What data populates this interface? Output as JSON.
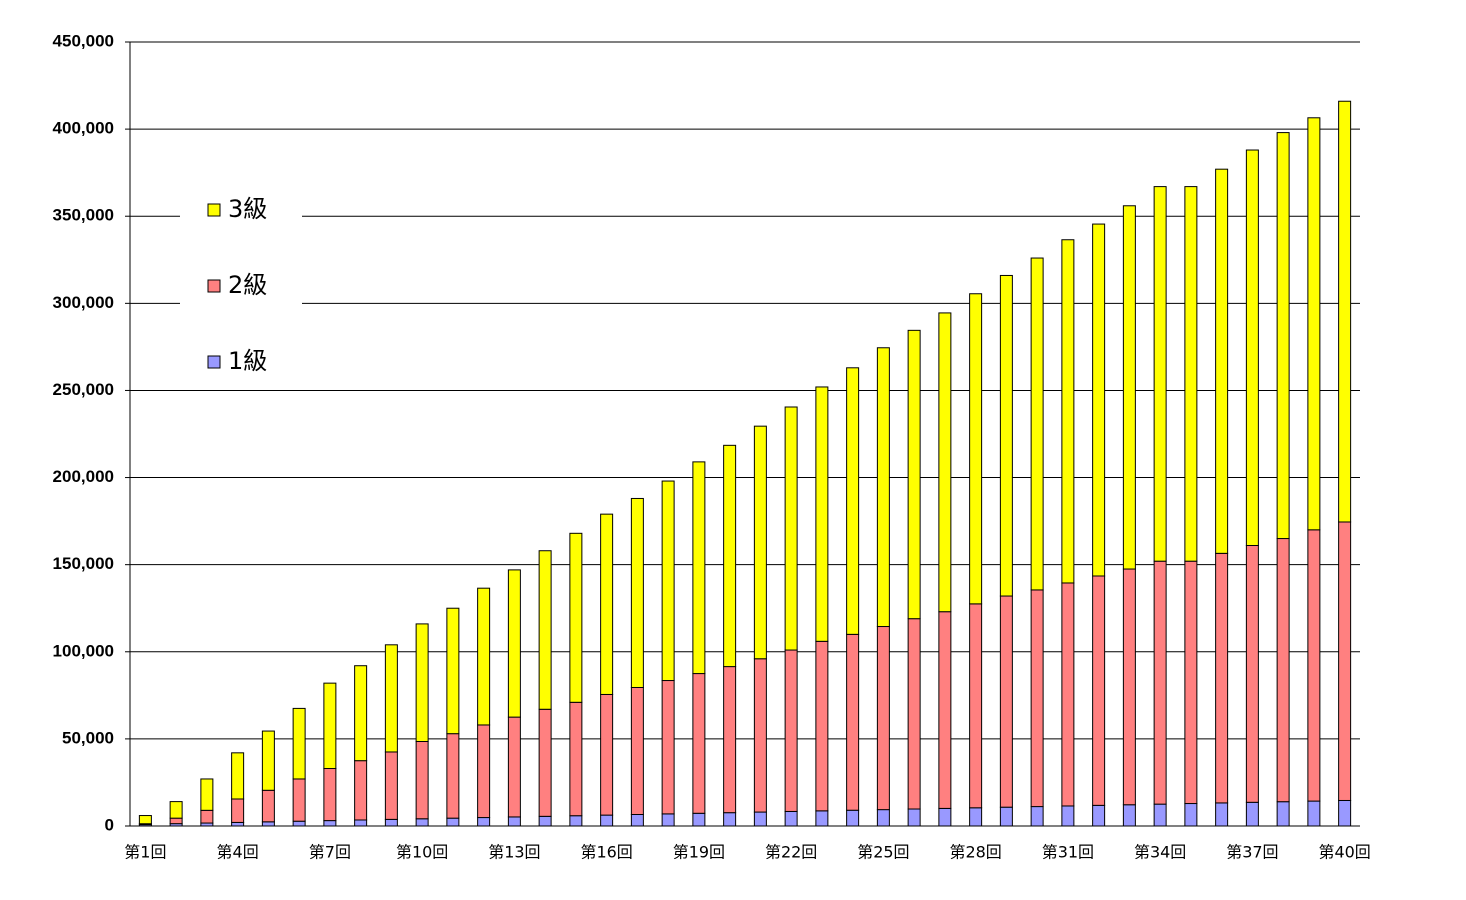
{
  "chart_data": {
    "type": "stacked-bar",
    "categories": [
      "第1回",
      null,
      null,
      "第4回",
      null,
      null,
      "第7回",
      null,
      null,
      "第10回",
      null,
      null,
      "第13回",
      null,
      null,
      "第16回",
      null,
      null,
      "第19回",
      null,
      null,
      "第22回",
      null,
      null,
      "第25回",
      null,
      null,
      "第28回",
      null,
      null,
      "第31回",
      null,
      null,
      "第34回",
      null,
      null,
      "第37回",
      null,
      null,
      "第40回"
    ],
    "series": [
      {
        "name": "1級",
        "color": "#9999ff",
        "values": [
          800,
          1350,
          1700,
          2050,
          2400,
          2750,
          3100,
          3450,
          3800,
          4150,
          4500,
          4850,
          5200,
          5550,
          5900,
          6250,
          6600,
          6950,
          7300,
          7650,
          8000,
          8350,
          8700,
          9050,
          9400,
          9750,
          10100,
          10450,
          10800,
          11150,
          11500,
          11850,
          12200,
          12550,
          12900,
          13250,
          13600,
          13950,
          14300,
          14650
        ]
      },
      {
        "name": "2級",
        "color": "#ff8080",
        "values": [
          500,
          3150,
          7300,
          13450,
          18100,
          24250,
          29900,
          34050,
          38700,
          44350,
          48500,
          53150,
          57300,
          61450,
          65100,
          69250,
          72900,
          76550,
          80200,
          83850,
          88000,
          92650,
          97300,
          100950,
          105100,
          109250,
          112900,
          117050,
          121200,
          124350,
          128000,
          131650,
          135300,
          139450,
          139100,
          143250,
          147400,
          151050,
          155700,
          159850
        ]
      },
      {
        "name": "3級",
        "color": "#ffff00",
        "values": [
          4700,
          9500,
          18000,
          26500,
          34000,
          40500,
          49000,
          54500,
          61500,
          67500,
          72000,
          78500,
          84500,
          91000,
          97000,
          103500,
          108500,
          114500,
          121500,
          127000,
          133500,
          139500,
          146000,
          153000,
          160000,
          165500,
          171500,
          178000,
          184000,
          190500,
          197000,
          202000,
          208500,
          215000,
          215000,
          220500,
          227000,
          233000,
          236500,
          241500
        ]
      }
    ],
    "ylim": [
      0,
      450000
    ],
    "yticks": [
      0,
      {
        "value": 50000,
        "label": "50,000"
      },
      {
        "value": 100000,
        "label": "100,000"
      },
      {
        "value": 150000,
        "label": "150,000"
      },
      {
        "value": 200000,
        "label": "200,000"
      },
      {
        "value": 250000,
        "label": "250,000"
      },
      {
        "value": 300000,
        "label": "300,000"
      },
      {
        "value": 350000,
        "label": "350,000"
      },
      {
        "value": 400000,
        "label": "400,000"
      },
      {
        "value": 450000,
        "label": "450,000"
      }
    ],
    "grid": true,
    "legend": "upper left"
  }
}
